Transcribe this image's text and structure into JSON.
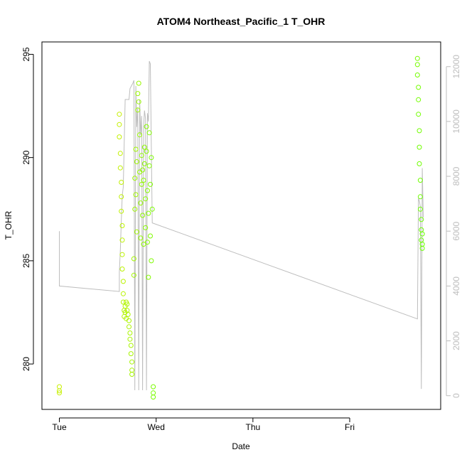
{
  "chart_data": {
    "type": "scatter",
    "title": "ATOM4 Northeast_Pacific_1 T_OHR",
    "xlabel": "Date",
    "ylabel": "T_OHR",
    "x_ticks": [
      "Tue",
      "Wed",
      "Thu",
      "Fri"
    ],
    "x_range_days": [
      -0.18,
      3.94
    ],
    "y_ticks": [
      280,
      285,
      290,
      295
    ],
    "ylim": [
      277.8,
      295.6
    ],
    "y2_ticks": [
      0,
      2000,
      4000,
      6000,
      8000,
      10000,
      12000
    ],
    "y2lim": [
      -500,
      12900
    ],
    "grid": false,
    "series": [
      {
        "name": "",
        "kind": "points",
        "color_start": "#c8f000",
        "color_end": "#66ff00",
        "points": [
          [
            0.0,
            278.9
          ],
          [
            0.0,
            278.7
          ],
          [
            0.0,
            278.6
          ],
          [
            0.62,
            292.1
          ],
          [
            0.62,
            291.6
          ],
          [
            0.62,
            291.0
          ],
          [
            0.63,
            290.2
          ],
          [
            0.63,
            289.5
          ],
          [
            0.64,
            288.8
          ],
          [
            0.64,
            288.1
          ],
          [
            0.64,
            287.4
          ],
          [
            0.65,
            286.7
          ],
          [
            0.65,
            286.0
          ],
          [
            0.65,
            285.3
          ],
          [
            0.65,
            284.6
          ],
          [
            0.66,
            284.0
          ],
          [
            0.66,
            283.4
          ],
          [
            0.66,
            283.0
          ],
          [
            0.67,
            282.6
          ],
          [
            0.67,
            282.3
          ],
          [
            0.68,
            282.8
          ],
          [
            0.68,
            282.5
          ],
          [
            0.69,
            283.0
          ],
          [
            0.69,
            282.2
          ],
          [
            0.7,
            282.6
          ],
          [
            0.7,
            282.9
          ],
          [
            0.71,
            282.4
          ],
          [
            0.72,
            282.1
          ],
          [
            0.72,
            281.8
          ],
          [
            0.73,
            281.5
          ],
          [
            0.73,
            281.2
          ],
          [
            0.74,
            280.9
          ],
          [
            0.74,
            280.5
          ],
          [
            0.75,
            280.1
          ],
          [
            0.75,
            279.7
          ],
          [
            0.75,
            279.5
          ],
          [
            0.77,
            285.1
          ],
          [
            0.77,
            284.3
          ],
          [
            0.78,
            287.5
          ],
          [
            0.78,
            289.0
          ],
          [
            0.79,
            290.4
          ],
          [
            0.79,
            288.2
          ],
          [
            0.8,
            286.4
          ],
          [
            0.8,
            289.8
          ],
          [
            0.81,
            292.3
          ],
          [
            0.81,
            293.1
          ],
          [
            0.82,
            293.6
          ],
          [
            0.82,
            292.7
          ],
          [
            0.83,
            291.1
          ],
          [
            0.83,
            289.3
          ],
          [
            0.84,
            287.8
          ],
          [
            0.84,
            286.1
          ],
          [
            0.85,
            288.7
          ],
          [
            0.85,
            290.1
          ],
          [
            0.86,
            289.4
          ],
          [
            0.86,
            287.2
          ],
          [
            0.87,
            285.8
          ],
          [
            0.87,
            288.9
          ],
          [
            0.88,
            290.5
          ],
          [
            0.88,
            289.7
          ],
          [
            0.89,
            288.0
          ],
          [
            0.89,
            286.6
          ],
          [
            0.9,
            291.5
          ],
          [
            0.9,
            290.3
          ],
          [
            0.91,
            288.4
          ],
          [
            0.91,
            285.9
          ],
          [
            0.92,
            284.2
          ],
          [
            0.92,
            287.3
          ],
          [
            0.93,
            289.6
          ],
          [
            0.93,
            291.2
          ],
          [
            0.94,
            288.7
          ],
          [
            0.94,
            286.2
          ],
          [
            0.95,
            285.0
          ],
          [
            0.95,
            290.0
          ],
          [
            0.96,
            287.5
          ],
          [
            0.97,
            278.9
          ],
          [
            0.97,
            278.6
          ],
          [
            0.97,
            278.4
          ],
          [
            3.7,
            294.8
          ],
          [
            3.7,
            294.5
          ],
          [
            3.7,
            294.0
          ],
          [
            3.71,
            293.4
          ],
          [
            3.71,
            292.8
          ],
          [
            3.71,
            292.1
          ],
          [
            3.72,
            291.3
          ],
          [
            3.72,
            290.5
          ],
          [
            3.72,
            289.7
          ],
          [
            3.73,
            288.9
          ],
          [
            3.73,
            288.1
          ],
          [
            3.73,
            287.5
          ],
          [
            3.74,
            287.0
          ],
          [
            3.74,
            286.5
          ],
          [
            3.74,
            286.0
          ],
          [
            3.75,
            285.6
          ],
          [
            3.75,
            285.8
          ],
          [
            3.75,
            286.3
          ]
        ]
      },
      {
        "name": "",
        "kind": "line",
        "axis": "right",
        "color": "#bdbdbd",
        "points": [
          [
            0.0,
            6000
          ],
          [
            0.0,
            4000
          ],
          [
            0.62,
            3800
          ],
          [
            0.62,
            4500
          ],
          [
            0.63,
            5300
          ],
          [
            0.64,
            6400
          ],
          [
            0.65,
            7300
          ],
          [
            0.66,
            7600
          ],
          [
            0.68,
            10800
          ],
          [
            0.72,
            10800
          ],
          [
            0.73,
            11200
          ],
          [
            0.76,
            11400
          ],
          [
            0.77,
            11500
          ],
          [
            0.78,
            200
          ],
          [
            0.79,
            11300
          ],
          [
            0.8,
            9800
          ],
          [
            0.81,
            10500
          ],
          [
            0.82,
            200
          ],
          [
            0.83,
            10800
          ],
          [
            0.84,
            9500
          ],
          [
            0.85,
            10200
          ],
          [
            0.86,
            200
          ],
          [
            0.87,
            9800
          ],
          [
            0.88,
            10400
          ],
          [
            0.89,
            10100
          ],
          [
            0.9,
            200
          ],
          [
            0.91,
            10300
          ],
          [
            0.92,
            10000
          ],
          [
            0.93,
            12200
          ],
          [
            0.94,
            12100
          ],
          [
            0.96,
            6300
          ],
          [
            3.7,
            2800
          ],
          [
            3.71,
            7200
          ],
          [
            3.72,
            7100
          ],
          [
            3.73,
            6900
          ],
          [
            3.74,
            250
          ],
          [
            3.75,
            8300
          ],
          [
            3.76,
            6500
          ]
        ]
      }
    ]
  }
}
